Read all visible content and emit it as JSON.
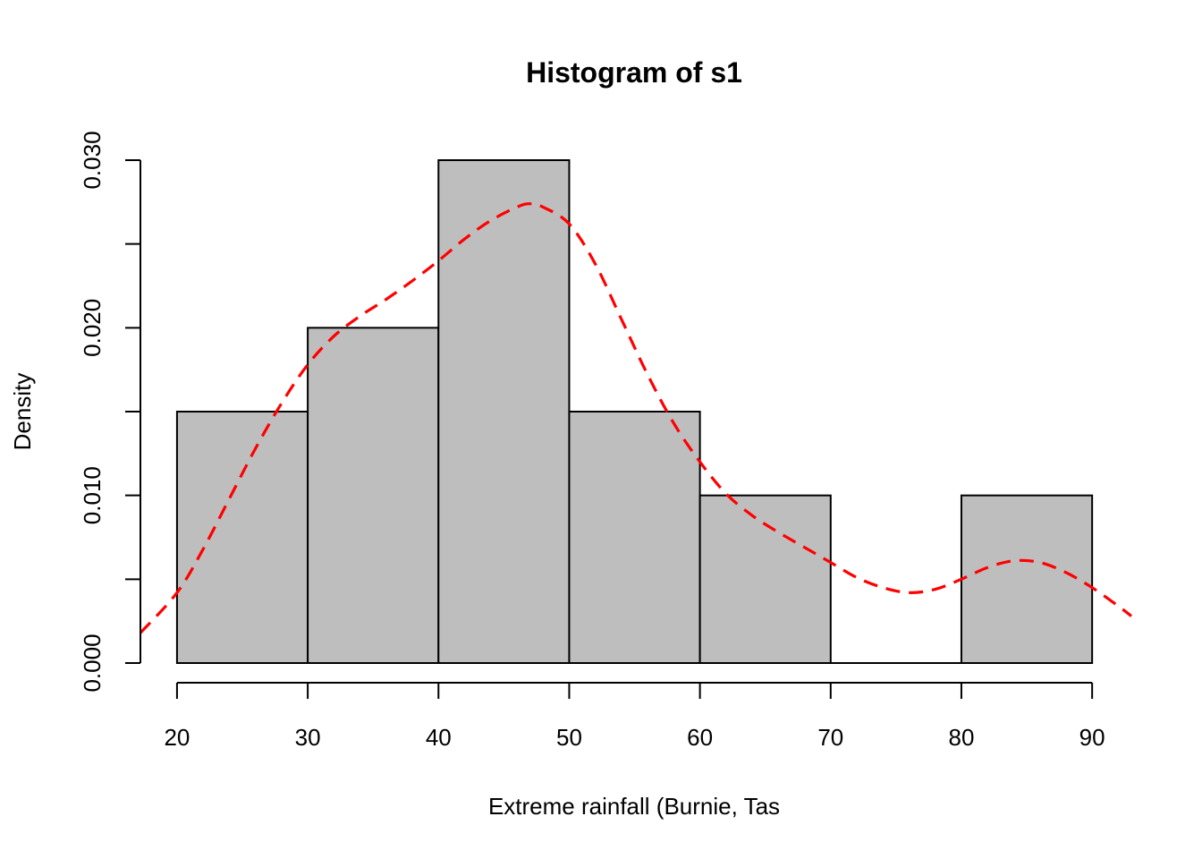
{
  "chart_data": {
    "type": "bar",
    "title": "Histogram of s1",
    "xlabel": "Extreme rainfall (Burnie, Tas",
    "ylabel": "Density",
    "xlim": [
      17.2,
      93.0
    ],
    "ylim": [
      0.0,
      0.03
    ],
    "x_ticks": [
      20,
      30,
      40,
      50,
      60,
      70,
      80,
      90
    ],
    "x_tick_labels": [
      "20",
      "30",
      "40",
      "50",
      "60",
      "70",
      "80",
      "90"
    ],
    "y_ticks": [
      0.0,
      0.005,
      0.01,
      0.015,
      0.02,
      0.025,
      0.03
    ],
    "y_tick_labels": [
      "0.000",
      "",
      "0.010",
      "",
      "0.020",
      "",
      "0.030"
    ],
    "grid": false,
    "bins": [
      {
        "x0": 20,
        "x1": 30,
        "density": 0.015
      },
      {
        "x0": 30,
        "x1": 40,
        "density": 0.02
      },
      {
        "x0": 40,
        "x1": 50,
        "density": 0.03
      },
      {
        "x0": 50,
        "x1": 60,
        "density": 0.015
      },
      {
        "x0": 60,
        "x1": 70,
        "density": 0.01
      },
      {
        "x0": 70,
        "x1": 80,
        "density": 0.0
      },
      {
        "x0": 80,
        "x1": 90,
        "density": 0.01
      }
    ],
    "bar_fill": "#bebebe",
    "bar_stroke": "#000000",
    "density_curve": {
      "color": "#ff0000",
      "style": "dashed",
      "x": [
        17.2,
        20,
        22,
        24,
        26,
        28,
        30,
        32,
        34,
        36,
        38,
        40,
        42,
        44,
        46,
        47,
        48,
        50,
        52,
        54,
        56,
        58,
        60,
        62,
        64,
        66,
        68,
        70,
        72,
        74,
        76,
        78,
        80,
        82,
        84,
        86,
        88,
        90,
        92,
        93.0
      ],
      "y": [
        0.0018,
        0.0042,
        0.0068,
        0.0098,
        0.0128,
        0.0155,
        0.0178,
        0.0195,
        0.0207,
        0.0217,
        0.0228,
        0.024,
        0.0253,
        0.0264,
        0.0272,
        0.0274,
        0.0272,
        0.0262,
        0.0238,
        0.0205,
        0.0172,
        0.0143,
        0.012,
        0.0101,
        0.0088,
        0.0078,
        0.0069,
        0.006,
        0.0051,
        0.0045,
        0.0042,
        0.0044,
        0.005,
        0.0057,
        0.0061,
        0.006,
        0.0054,
        0.0045,
        0.0034,
        0.0028
      ]
    }
  }
}
